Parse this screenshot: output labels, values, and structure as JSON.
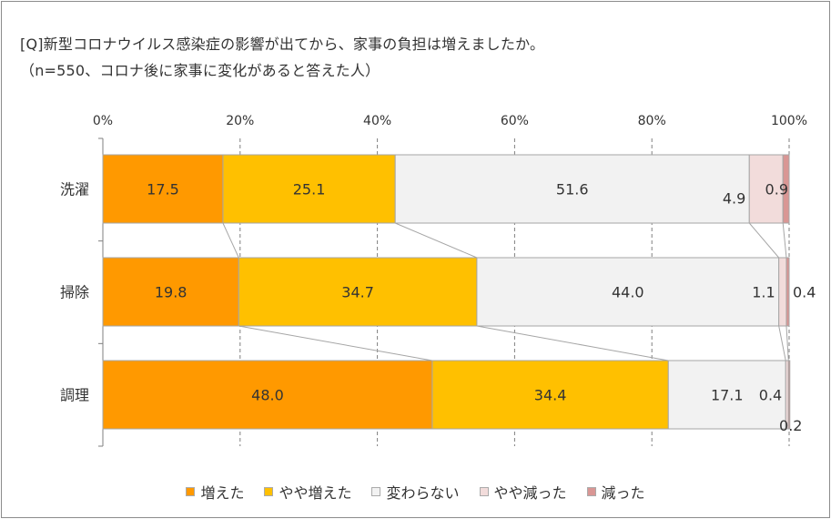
{
  "title_line1": "[Q]新型コロナウイルス感染症の影響が出てから、家事の負担は増えましたか。",
  "title_line2": "（n=550、コロナ後に家事に変化があると答えた人）",
  "chart_data": {
    "type": "bar",
    "stacked": true,
    "orientation": "horizontal",
    "unit": "%",
    "categories": [
      "洗濯",
      "掃除",
      "調理"
    ],
    "series": [
      {
        "name": "増えた",
        "values": [
          17.5,
          19.8,
          48.0
        ],
        "color": "#FF9900"
      },
      {
        "name": "やや増えた",
        "values": [
          25.1,
          34.7,
          34.4
        ],
        "color": "#FFC000"
      },
      {
        "name": "変わらない",
        "values": [
          51.6,
          44.0,
          17.1
        ],
        "color": "#F2F2F2"
      },
      {
        "name": "やや減った",
        "values": [
          4.9,
          1.1,
          0.4
        ],
        "color": "#F2DCDB"
      },
      {
        "name": "減った",
        "values": [
          0.9,
          0.4,
          0.2
        ],
        "color": "#D99694"
      }
    ],
    "value_labels": [
      [
        "17.5",
        "25.1",
        "51.6",
        "4.9",
        "0.9"
      ],
      [
        "19.8",
        "34.7",
        "44.0",
        "1.1",
        "0.4"
      ],
      [
        "48.0",
        "34.4",
        "17.1",
        "0.4",
        "0.2"
      ]
    ],
    "xlim": [
      0,
      100
    ],
    "x_ticks": [
      "0%",
      "20%",
      "40%",
      "60%",
      "80%",
      "100%"
    ],
    "gridlines": "dashed vertical",
    "series_lines": true,
    "legend": "bottom"
  }
}
